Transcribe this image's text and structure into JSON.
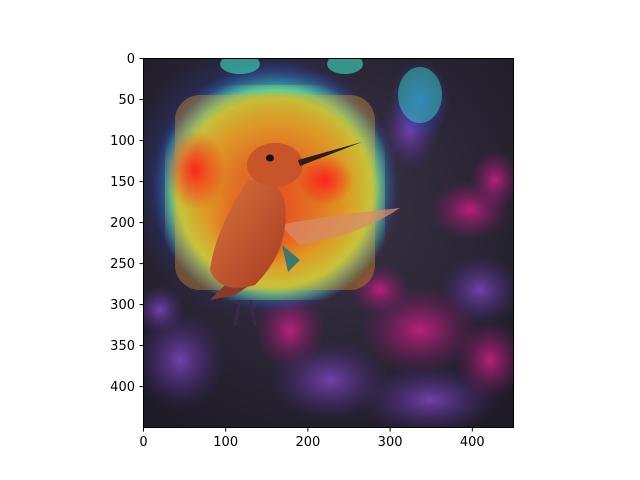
{
  "figure": {
    "background": "#ffffff",
    "image_description_colors": {
      "background_dark": "#2b2436",
      "flowers_magenta": "#b0207a",
      "flowers_purple": "#6a3a9a",
      "heat_red": "#e8241c",
      "heat_orange": "#f08a1c",
      "heat_yellow": "#e8e02c",
      "heat_cyan": "#3ce0d0",
      "heat_blue": "#2a4ad8",
      "bird_body": "#c8542a"
    },
    "x_axis": {
      "ticks": [
        "0",
        "100",
        "200",
        "300",
        "400"
      ],
      "range": [
        0,
        450
      ]
    },
    "y_axis": {
      "ticks": [
        "0",
        "50",
        "100",
        "150",
        "200",
        "250",
        "300",
        "350",
        "400"
      ],
      "range": [
        0,
        450
      ],
      "inverted": true
    },
    "axes_color": "#000000"
  }
}
